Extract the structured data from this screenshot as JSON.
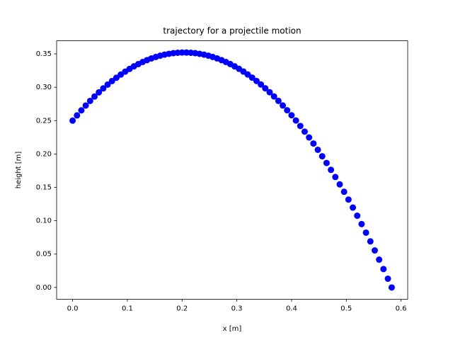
{
  "chart_data": {
    "type": "scatter",
    "title": "trajectory for a projectile motion",
    "x_label": "x [m]",
    "y_label": "height [m]",
    "color": "#0000ff",
    "series": [
      {
        "color": "#0000ff",
        "x": [
          0,
          0.008,
          0.016,
          0.024,
          0.032,
          0.04,
          0.048,
          0.056,
          0.064,
          0.072,
          0.08,
          0.088,
          0.096,
          0.104,
          0.112,
          0.12,
          0.128,
          0.136,
          0.144,
          0.152,
          0.16,
          0.168,
          0.176,
          0.184,
          0.192,
          0.2,
          0.208,
          0.216,
          0.224,
          0.232,
          0.24,
          0.248,
          0.256,
          0.264,
          0.272,
          0.28,
          0.288,
          0.296,
          0.304,
          0.312,
          0.32,
          0.328,
          0.336,
          0.344,
          0.352,
          0.36,
          0.368,
          0.376,
          0.384,
          0.392,
          0.4,
          0.408,
          0.416,
          0.424,
          0.432,
          0.44,
          0.448,
          0.456,
          0.464,
          0.472,
          0.48,
          0.488,
          0.496,
          0.504,
          0.512,
          0.52,
          0.528,
          0.536,
          0.544,
          0.552,
          0.56,
          0.568,
          0.576,
          0.583
        ],
        "values": [
          0.25,
          0.2578,
          0.2654,
          0.2726,
          0.2795,
          0.2861,
          0.2924,
          0.2983,
          0.304,
          0.3093,
          0.3143,
          0.319,
          0.3234,
          0.3275,
          0.3313,
          0.3347,
          0.3379,
          0.3407,
          0.3432,
          0.3454,
          0.3473,
          0.3489,
          0.3501,
          0.3511,
          0.3517,
          0.352,
          0.352,
          0.3517,
          0.3511,
          0.3501,
          0.3489,
          0.3473,
          0.3454,
          0.3432,
          0.3407,
          0.3379,
          0.3348,
          0.3313,
          0.3276,
          0.3235,
          0.3191,
          0.3144,
          0.3094,
          0.3041,
          0.2984,
          0.2925,
          0.2862,
          0.2796,
          0.2727,
          0.2655,
          0.258,
          0.2502,
          0.242,
          0.2335,
          0.2248,
          0.2157,
          0.2063,
          0.1966,
          0.1865,
          0.1762,
          0.1655,
          0.1545,
          0.1433,
          0.1317,
          0.1197,
          0.1075,
          0.095,
          0.0821,
          0.069,
          0.0555,
          0.0417,
          0.0276,
          0.0131,
          0
        ]
      }
    ],
    "xlim": [
      -0.0292,
      0.6122
    ],
    "ylim": [
      -0.0176,
      0.3696
    ],
    "xticks": [
      {
        "value": 0,
        "label": "0.0"
      },
      0.1,
      0.2,
      0.3,
      0.4,
      0.5,
      0.6
    ],
    "yticks": [
      {
        "value": 0,
        "label": "0.00"
      },
      0.05,
      {
        "value": 0.1,
        "label": "0.10"
      },
      0.15,
      {
        "value": 0.2,
        "label": "0.20"
      },
      0.25,
      {
        "value": 0.3,
        "label": "0.30"
      },
      0.35
    ],
    "grid": false
  }
}
